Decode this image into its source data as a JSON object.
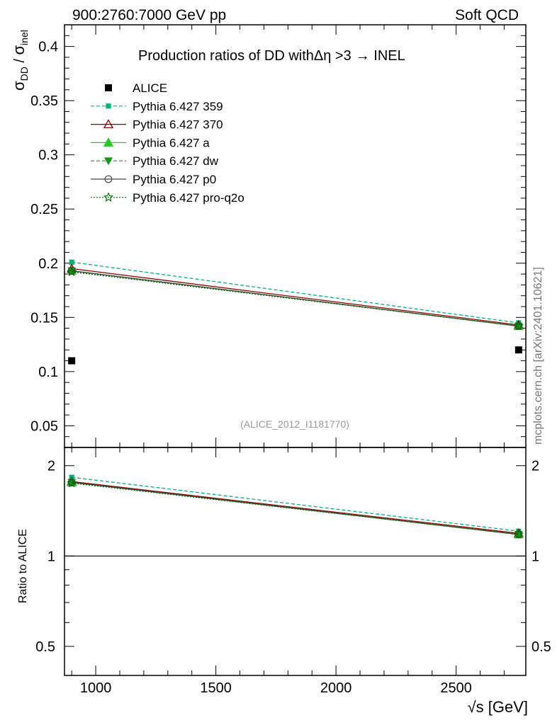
{
  "header": {
    "left": "900:2760:7000 GeV pp",
    "right": "Soft QCD"
  },
  "side_label": "mcplots.cern.ch [arXiv:2401.10621]",
  "analysis_id": "(ALICE_2012_I1181770)",
  "chart_data": [
    {
      "type": "line",
      "panel": "main",
      "title_parts": {
        "before": "Production ratios of DD with",
        "delta_eta": "Δη",
        "after": " >3",
        "arrow": "→",
        "target": " INEL"
      },
      "ylabel_parts": {
        "sigma": "σ",
        "sub1": "DD",
        "slash": " / ",
        "sub2": "inel"
      },
      "ylim": [
        0.03,
        0.42
      ],
      "yticks": [
        0.05,
        0.1,
        0.15,
        0.2,
        0.25,
        0.3,
        0.35,
        0.4
      ],
      "ytick_labels": [
        "0.05",
        "0.1",
        "0.15",
        "0.2",
        "0.25",
        "0.3",
        "0.35",
        "0.4"
      ],
      "xlim": [
        870,
        2790
      ],
      "legend_position": "top-left",
      "data_series": {
        "name": "ALICE",
        "x": [
          900,
          2760
        ],
        "y": [
          0.11,
          0.12
        ]
      },
      "series": [
        {
          "name": "Pythia 6.427 359",
          "color": "#00b27a",
          "dash": "dashed",
          "marker": "square-small",
          "x": [
            900,
            2760
          ],
          "y": [
            0.201,
            0.145
          ]
        },
        {
          "name": "Pythia 6.427 370",
          "color": "#8b0000",
          "dash": "solid",
          "marker": "triangle-open",
          "x": [
            900,
            2760
          ],
          "y": [
            0.195,
            0.143
          ]
        },
        {
          "name": "Pythia 6.427 a",
          "color": "#22cc22",
          "dash": "solid",
          "marker": "triangle-filled",
          "x": [
            900,
            2760
          ],
          "y": [
            0.193,
            0.142
          ]
        },
        {
          "name": "Pythia 6.427 dw",
          "color": "#119911",
          "dash": "dashed",
          "marker": "triangle-down",
          "x": [
            900,
            2760
          ],
          "y": [
            0.193,
            0.142
          ]
        },
        {
          "name": "Pythia 6.427 p0",
          "color": "#444444",
          "dash": "solid",
          "marker": "circle-open",
          "x": [
            900,
            2760
          ],
          "y": [
            0.193,
            0.142
          ]
        },
        {
          "name": "Pythia 6.427 pro-q2o",
          "color": "#006600",
          "dash": "dotted",
          "marker": "star-open",
          "x": [
            900,
            2760
          ],
          "y": [
            0.192,
            0.142
          ]
        }
      ]
    },
    {
      "type": "line",
      "panel": "ratio",
      "ylabel": "Ratio to ALICE",
      "ylim": [
        0.4,
        2.3
      ],
      "log_scale": true,
      "yticks": [
        0.5,
        1,
        2
      ],
      "ytick_labels": [
        "0.5",
        "1",
        "2"
      ],
      "xlim": [
        870,
        2790
      ],
      "xticks": [
        1000,
        1500,
        2000,
        2500
      ],
      "xtick_labels": [
        "1000",
        "1500",
        "2000",
        "2500"
      ],
      "xlabel_parts": {
        "root": "√",
        "s": "s",
        "unit": " [GeV]"
      },
      "reference_line": 1,
      "series": [
        {
          "name": "Pythia 6.427 359",
          "x": [
            900,
            2760
          ],
          "y": [
            1.83,
            1.21
          ]
        },
        {
          "name": "Pythia 6.427 370",
          "x": [
            900,
            2760
          ],
          "y": [
            1.77,
            1.19
          ]
        },
        {
          "name": "Pythia 6.427 a",
          "x": [
            900,
            2760
          ],
          "y": [
            1.76,
            1.18
          ]
        },
        {
          "name": "Pythia 6.427 dw",
          "x": [
            900,
            2760
          ],
          "y": [
            1.76,
            1.18
          ]
        },
        {
          "name": "Pythia 6.427 p0",
          "x": [
            900,
            2760
          ],
          "y": [
            1.76,
            1.18
          ]
        },
        {
          "name": "Pythia 6.427 pro-q2o",
          "x": [
            900,
            2760
          ],
          "y": [
            1.75,
            1.18
          ]
        }
      ]
    }
  ]
}
